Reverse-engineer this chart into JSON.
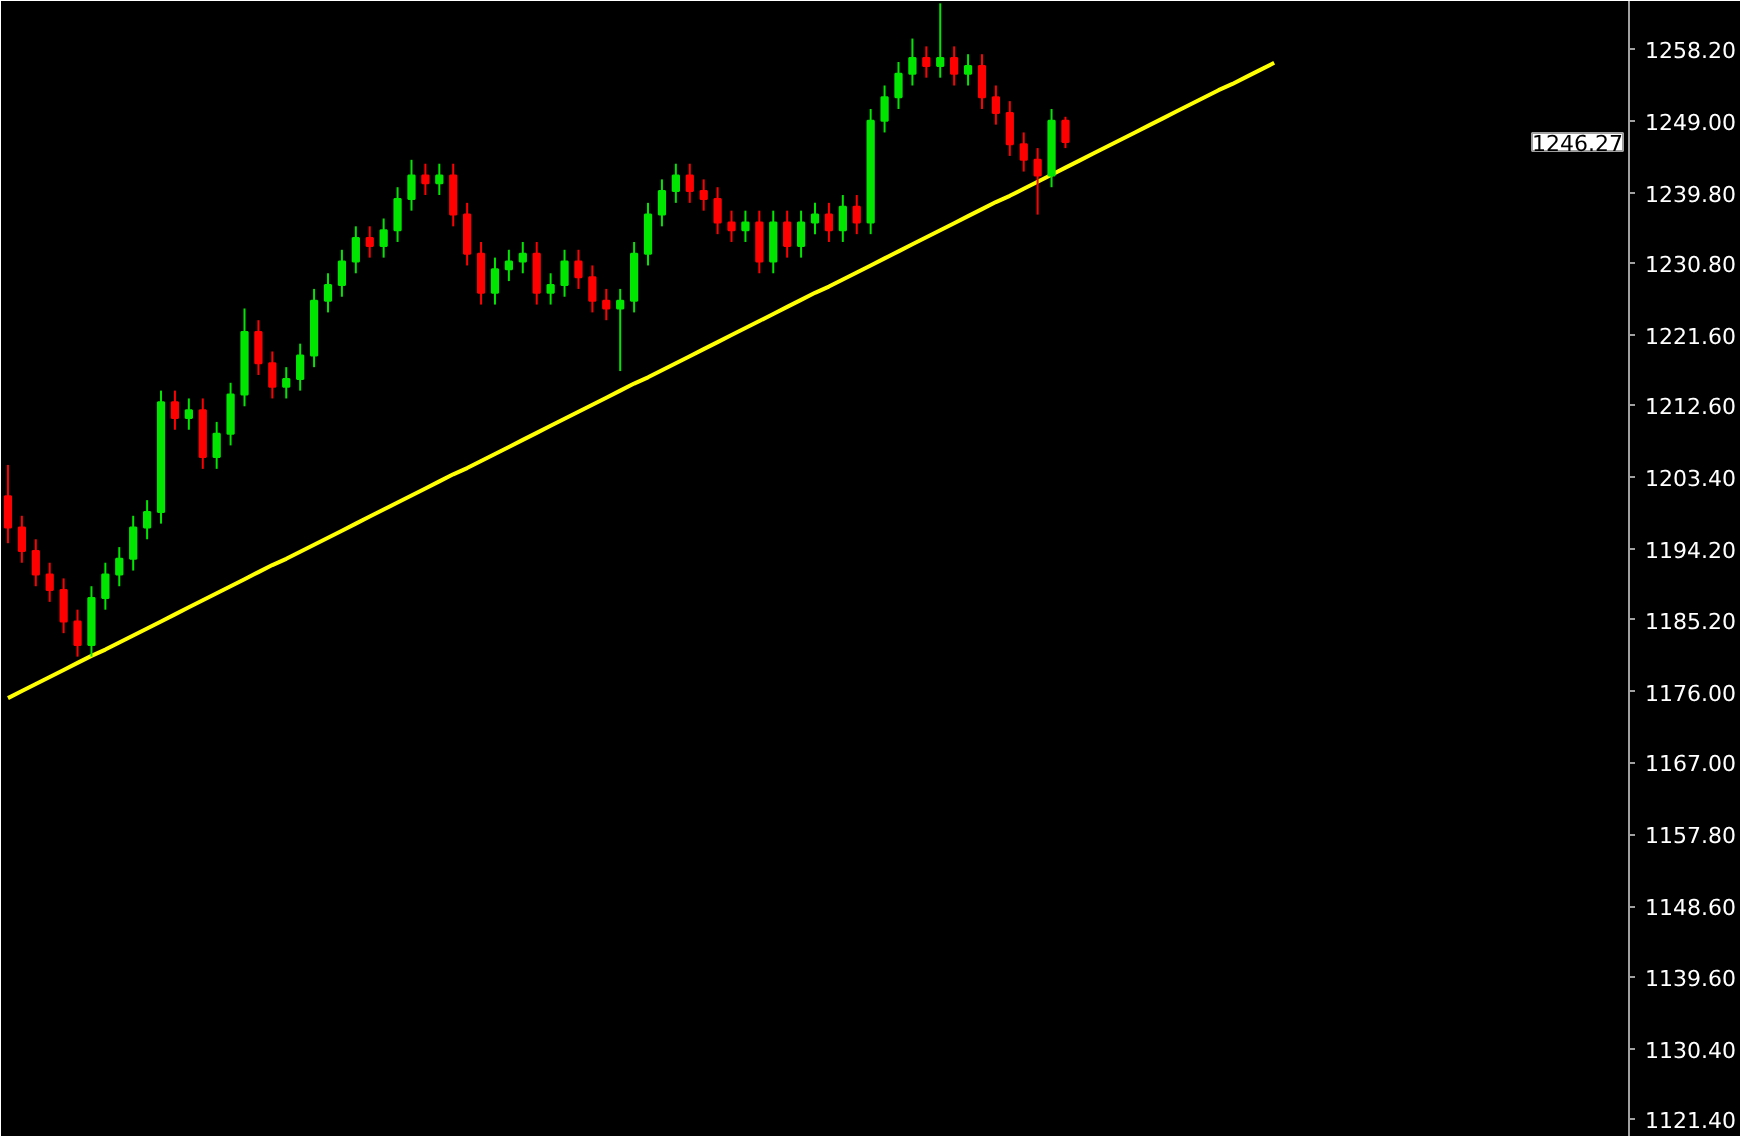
{
  "chart_data": {
    "type": "candlestick",
    "categories": [
      null,
      null,
      null,
      null,
      null,
      null,
      null,
      null,
      null,
      null,
      null,
      null,
      null,
      null,
      null,
      null,
      null,
      null,
      null,
      null,
      null,
      null,
      null,
      null,
      null,
      null,
      null,
      null,
      null,
      null,
      null,
      null,
      null,
      null,
      null,
      null,
      null,
      null,
      null,
      null,
      null,
      null,
      null,
      null,
      null,
      null,
      null,
      null,
      null,
      null,
      null,
      null,
      null,
      null,
      null,
      null,
      null,
      null,
      null,
      null,
      null,
      null,
      null,
      null,
      null,
      null,
      null,
      null,
      null,
      null,
      null,
      null,
      null,
      null,
      null,
      null,
      null,
      null,
      null,
      null,
      null,
      null,
      null,
      null,
      null,
      null,
      null,
      null,
      null,
      null,
      null,
      null,
      null,
      null,
      null,
      null,
      null,
      null,
      null,
      null,
      null,
      null,
      null,
      null,
      null,
      null,
      null,
      null,
      null,
      null,
      null,
      null,
      null,
      null,
      null,
      null,
      null
    ],
    "ohlc": [
      [
        1201,
        1205,
        1195,
        1197
      ],
      [
        1197,
        1198.5,
        1192.5,
        1194
      ],
      [
        1194,
        1195.5,
        1189.5,
        1191
      ],
      [
        1191,
        1192.5,
        1187.5,
        1189
      ],
      [
        1189,
        1190.5,
        1183.5,
        1185
      ],
      [
        1185,
        1186.5,
        1180.5,
        1182
      ],
      [
        1182,
        1189.5,
        1180.5,
        1188
      ],
      [
        1188,
        1192.5,
        1186.5,
        1191
      ],
      [
        1191,
        1194.5,
        1189.5,
        1193
      ],
      [
        1193,
        1198.5,
        1191.5,
        1197
      ],
      [
        1197,
        1200.5,
        1195.5,
        1199
      ],
      [
        1199,
        1214.5,
        1197.5,
        1213
      ],
      [
        1213,
        1214.5,
        1209.5,
        1211
      ],
      [
        1211,
        1213.5,
        1209.5,
        1212
      ],
      [
        1212,
        1213.5,
        1204.5,
        1206
      ],
      [
        1206,
        1210.5,
        1204.5,
        1209
      ],
      [
        1209,
        1215.5,
        1207.5,
        1214
      ],
      [
        1214,
        1225,
        1212.5,
        1222
      ],
      [
        1222,
        1223.5,
        1216.5,
        1218
      ],
      [
        1218,
        1219.5,
        1213.5,
        1215
      ],
      [
        1215,
        1217.5,
        1213.5,
        1216
      ],
      [
        1216,
        1220.5,
        1214.5,
        1219
      ],
      [
        1219,
        1227.5,
        1217.5,
        1226
      ],
      [
        1226,
        1229.5,
        1224.5,
        1228
      ],
      [
        1228,
        1232.5,
        1226.5,
        1231
      ],
      [
        1231,
        1235.5,
        1229.5,
        1234
      ],
      [
        1234,
        1235.5,
        1231.5,
        1233
      ],
      [
        1233,
        1236.5,
        1231.5,
        1235
      ],
      [
        1235,
        1240.5,
        1233.5,
        1239
      ],
      [
        1239,
        1244,
        1237.5,
        1242
      ],
      [
        1242,
        1243.5,
        1239.5,
        1241
      ],
      [
        1241,
        1243.5,
        1239.5,
        1242
      ],
      [
        1242,
        1243.5,
        1235.5,
        1237
      ],
      [
        1237,
        1238.5,
        1230.5,
        1232
      ],
      [
        1232,
        1233.5,
        1225.5,
        1227
      ],
      [
        1227,
        1231.5,
        1225.5,
        1230
      ],
      [
        1230,
        1232.5,
        1228.5,
        1231
      ],
      [
        1231,
        1233.5,
        1229.5,
        1232
      ],
      [
        1232,
        1233.5,
        1225.5,
        1227
      ],
      [
        1227,
        1229.5,
        1225.5,
        1228
      ],
      [
        1228,
        1232.5,
        1226.5,
        1231
      ],
      [
        1231,
        1232.5,
        1227.5,
        1229
      ],
      [
        1229,
        1230.5,
        1224.5,
        1226
      ],
      [
        1226,
        1227.5,
        1223.5,
        1225
      ],
      [
        1225,
        1227.5,
        1217,
        1226
      ],
      [
        1226,
        1233.5,
        1224.5,
        1232
      ],
      [
        1232,
        1238.5,
        1230.5,
        1237
      ],
      [
        1237,
        1241.5,
        1235.5,
        1240
      ],
      [
        1240,
        1243.5,
        1238.5,
        1242
      ],
      [
        1242,
        1243.5,
        1238.5,
        1240
      ],
      [
        1240,
        1241.5,
        1237.5,
        1239
      ],
      [
        1239,
        1240.5,
        1234.5,
        1236
      ],
      [
        1236,
        1237.5,
        1233.5,
        1235
      ],
      [
        1235,
        1237.5,
        1233.5,
        1236
      ],
      [
        1236,
        1237.5,
        1229.5,
        1231
      ],
      [
        1231,
        1237.5,
        1229.5,
        1236
      ],
      [
        1236,
        1237.5,
        1231.5,
        1233
      ],
      [
        1233,
        1237.5,
        1231.5,
        1236
      ],
      [
        1236,
        1238.5,
        1234.5,
        1237
      ],
      [
        1237,
        1238.5,
        1233.5,
        1235
      ],
      [
        1235,
        1239.5,
        1233.5,
        1238
      ],
      [
        1238,
        1239.5,
        1234.5,
        1236
      ],
      [
        1236,
        1250.5,
        1234.5,
        1249
      ],
      [
        1249,
        1253.5,
        1247.5,
        1252
      ],
      [
        1252,
        1256.5,
        1250.5,
        1255
      ],
      [
        1255,
        1259.5,
        1253.5,
        1257
      ],
      [
        1257,
        1258.5,
        1254.5,
        1256
      ],
      [
        1256,
        1264,
        1254.5,
        1257
      ],
      [
        1257,
        1258.5,
        1253.5,
        1255
      ],
      [
        1255,
        1257.5,
        1253.5,
        1256
      ],
      [
        1256,
        1257.5,
        1250.5,
        1252
      ],
      [
        1252,
        1253.5,
        1248.5,
        1250
      ],
      [
        1250,
        1251.5,
        1244.5,
        1246
      ],
      [
        1246,
        1247.5,
        1242.5,
        1244
      ],
      [
        1244,
        1245.5,
        1237,
        1242
      ],
      [
        1242,
        1250.5,
        1240.5,
        1249
      ],
      [
        1249,
        1249.5,
        1245.5,
        1246.27
      ],
      null,
      null,
      null,
      null,
      null,
      null,
      null,
      null,
      null,
      null,
      null,
      null,
      null,
      null,
      null,
      null,
      null,
      null,
      null,
      null,
      null,
      null,
      null,
      null,
      null,
      null,
      null,
      null,
      null,
      null,
      null,
      null,
      null,
      null,
      null,
      null,
      null,
      null,
      null,
      null
    ],
    "colors": [
      "#ff0000",
      "#ff0000",
      "#ff0000",
      "#ff0000",
      "#ff0000",
      "#ff0000",
      "#00e600",
      "#00e600",
      "#00e600",
      "#00e600",
      "#00e600",
      "#00e600",
      "#ff0000",
      "#00e600",
      "#ff0000",
      "#00e600",
      "#00e600",
      "#00e600",
      "#ff0000",
      "#ff0000",
      "#00e600",
      "#00e600",
      "#00e600",
      "#00e600",
      "#00e600",
      "#00e600",
      "#ff0000",
      "#00e600",
      "#00e600",
      "#00e600",
      "#ff0000",
      "#00e600",
      "#ff0000",
      "#ff0000",
      "#ff0000",
      "#00e600",
      "#00e600",
      "#00e600",
      "#ff0000",
      "#00e600",
      "#00e600",
      "#ff0000",
      "#ff0000",
      "#ff0000",
      "#00e600",
      "#00e600",
      "#00e600",
      "#00e600",
      "#00e600",
      "#ff0000",
      "#ff0000",
      "#ff0000",
      "#ff0000",
      "#00e600",
      "#ff0000",
      "#00e600",
      "#ff0000",
      "#00e600",
      "#00e600",
      "#ff0000",
      "#00e600",
      "#ff0000",
      "#00e600",
      "#00e600",
      "#00e600",
      "#00e600",
      "#ff0000",
      "#00e600",
      "#ff0000",
      "#00e600",
      "#ff0000",
      "#ff0000",
      "#ff0000",
      "#ff0000",
      "#ff0000",
      "#00e600",
      "#ff0000",
      null,
      null,
      null,
      null,
      null,
      null,
      null,
      null,
      null,
      null,
      null,
      null,
      null,
      null,
      null,
      null,
      null,
      null,
      null,
      null,
      null,
      null,
      null,
      null,
      null,
      null,
      null,
      null,
      null,
      null,
      null,
      null,
      null,
      null,
      null,
      null,
      null,
      null,
      null,
      null
    ],
    "series": [
      {
        "type": "line",
        "color": "#ffff00",
        "values": [
          1175.2,
          1176.1,
          1177.0,
          1177.9,
          1178.8,
          1179.7,
          1180.6,
          1181.4,
          1182.3,
          1183.2,
          1184.1,
          1185.0,
          1185.9,
          1186.8,
          1187.7,
          1188.6,
          1189.5,
          1190.4,
          1191.3,
          1192.2,
          1193.0,
          1193.9,
          1194.8,
          1195.7,
          1196.6,
          1197.5,
          1198.4,
          1199.3,
          1200.2,
          1201.1,
          1202.0,
          1202.9,
          1203.8,
          1204.6,
          1205.5,
          1206.4,
          1207.3,
          1208.2,
          1209.1,
          1210.0,
          1210.9,
          1211.8,
          1212.7,
          1213.6,
          1214.5,
          1215.4,
          1216.2,
          1217.1,
          1218.0,
          1218.9,
          1219.8,
          1220.7,
          1221.6,
          1222.5,
          1223.4,
          1224.3,
          1225.2,
          1226.1,
          1227.0,
          1227.8,
          1228.7,
          1229.6,
          1230.5,
          1231.4,
          1232.3,
          1233.2,
          1234.1,
          1235.0,
          1235.9,
          1236.8,
          1237.7,
          1238.6,
          1239.4,
          1240.3,
          1241.2,
          1242.1,
          1243.0,
          1243.9,
          1244.8,
          1245.7,
          1246.6,
          1247.5,
          1248.4,
          1249.3,
          1250.2,
          1251.1,
          1252.0,
          1252.9,
          1253.7,
          1254.6,
          1255.5,
          1256.4,
          null,
          null,
          null,
          null,
          null,
          null,
          null,
          null,
          null,
          null,
          null,
          null,
          null,
          null,
          null,
          null,
          null,
          null,
          null,
          null,
          null,
          null,
          null,
          null,
          null
        ]
      }
    ],
    "ylim": [
      1119.1,
      1264.3
    ],
    "yticks": [
      {
        "value": 1258.2,
        "label": "1258.20"
      },
      {
        "value": 1249,
        "label": "1249.00"
      },
      {
        "value": 1239.8,
        "label": "1239.80"
      },
      {
        "value": 1230.8,
        "label": "1230.80"
      },
      {
        "value": 1221.6,
        "label": "1221.60"
      },
      {
        "value": 1212.6,
        "label": "1212.60"
      },
      {
        "value": 1203.4,
        "label": "1203.40"
      },
      {
        "value": 1194.2,
        "label": "1194.20"
      },
      {
        "value": 1185.2,
        "label": "1185.20"
      },
      {
        "value": 1176,
        "label": "1176.00"
      },
      {
        "value": 1167,
        "label": "1167.00"
      },
      {
        "value": 1157.8,
        "label": "1157.80"
      },
      {
        "value": 1148.6,
        "label": "1148.60"
      },
      {
        "value": 1139.6,
        "label": "1139.60"
      },
      {
        "value": 1130.4,
        "label": "1130.40"
      },
      {
        "value": 1121.4,
        "label": "1121.40"
      }
    ],
    "annotations": [
      "1246.27"
    ],
    "tick_labels": "y",
    "grid": false
  }
}
